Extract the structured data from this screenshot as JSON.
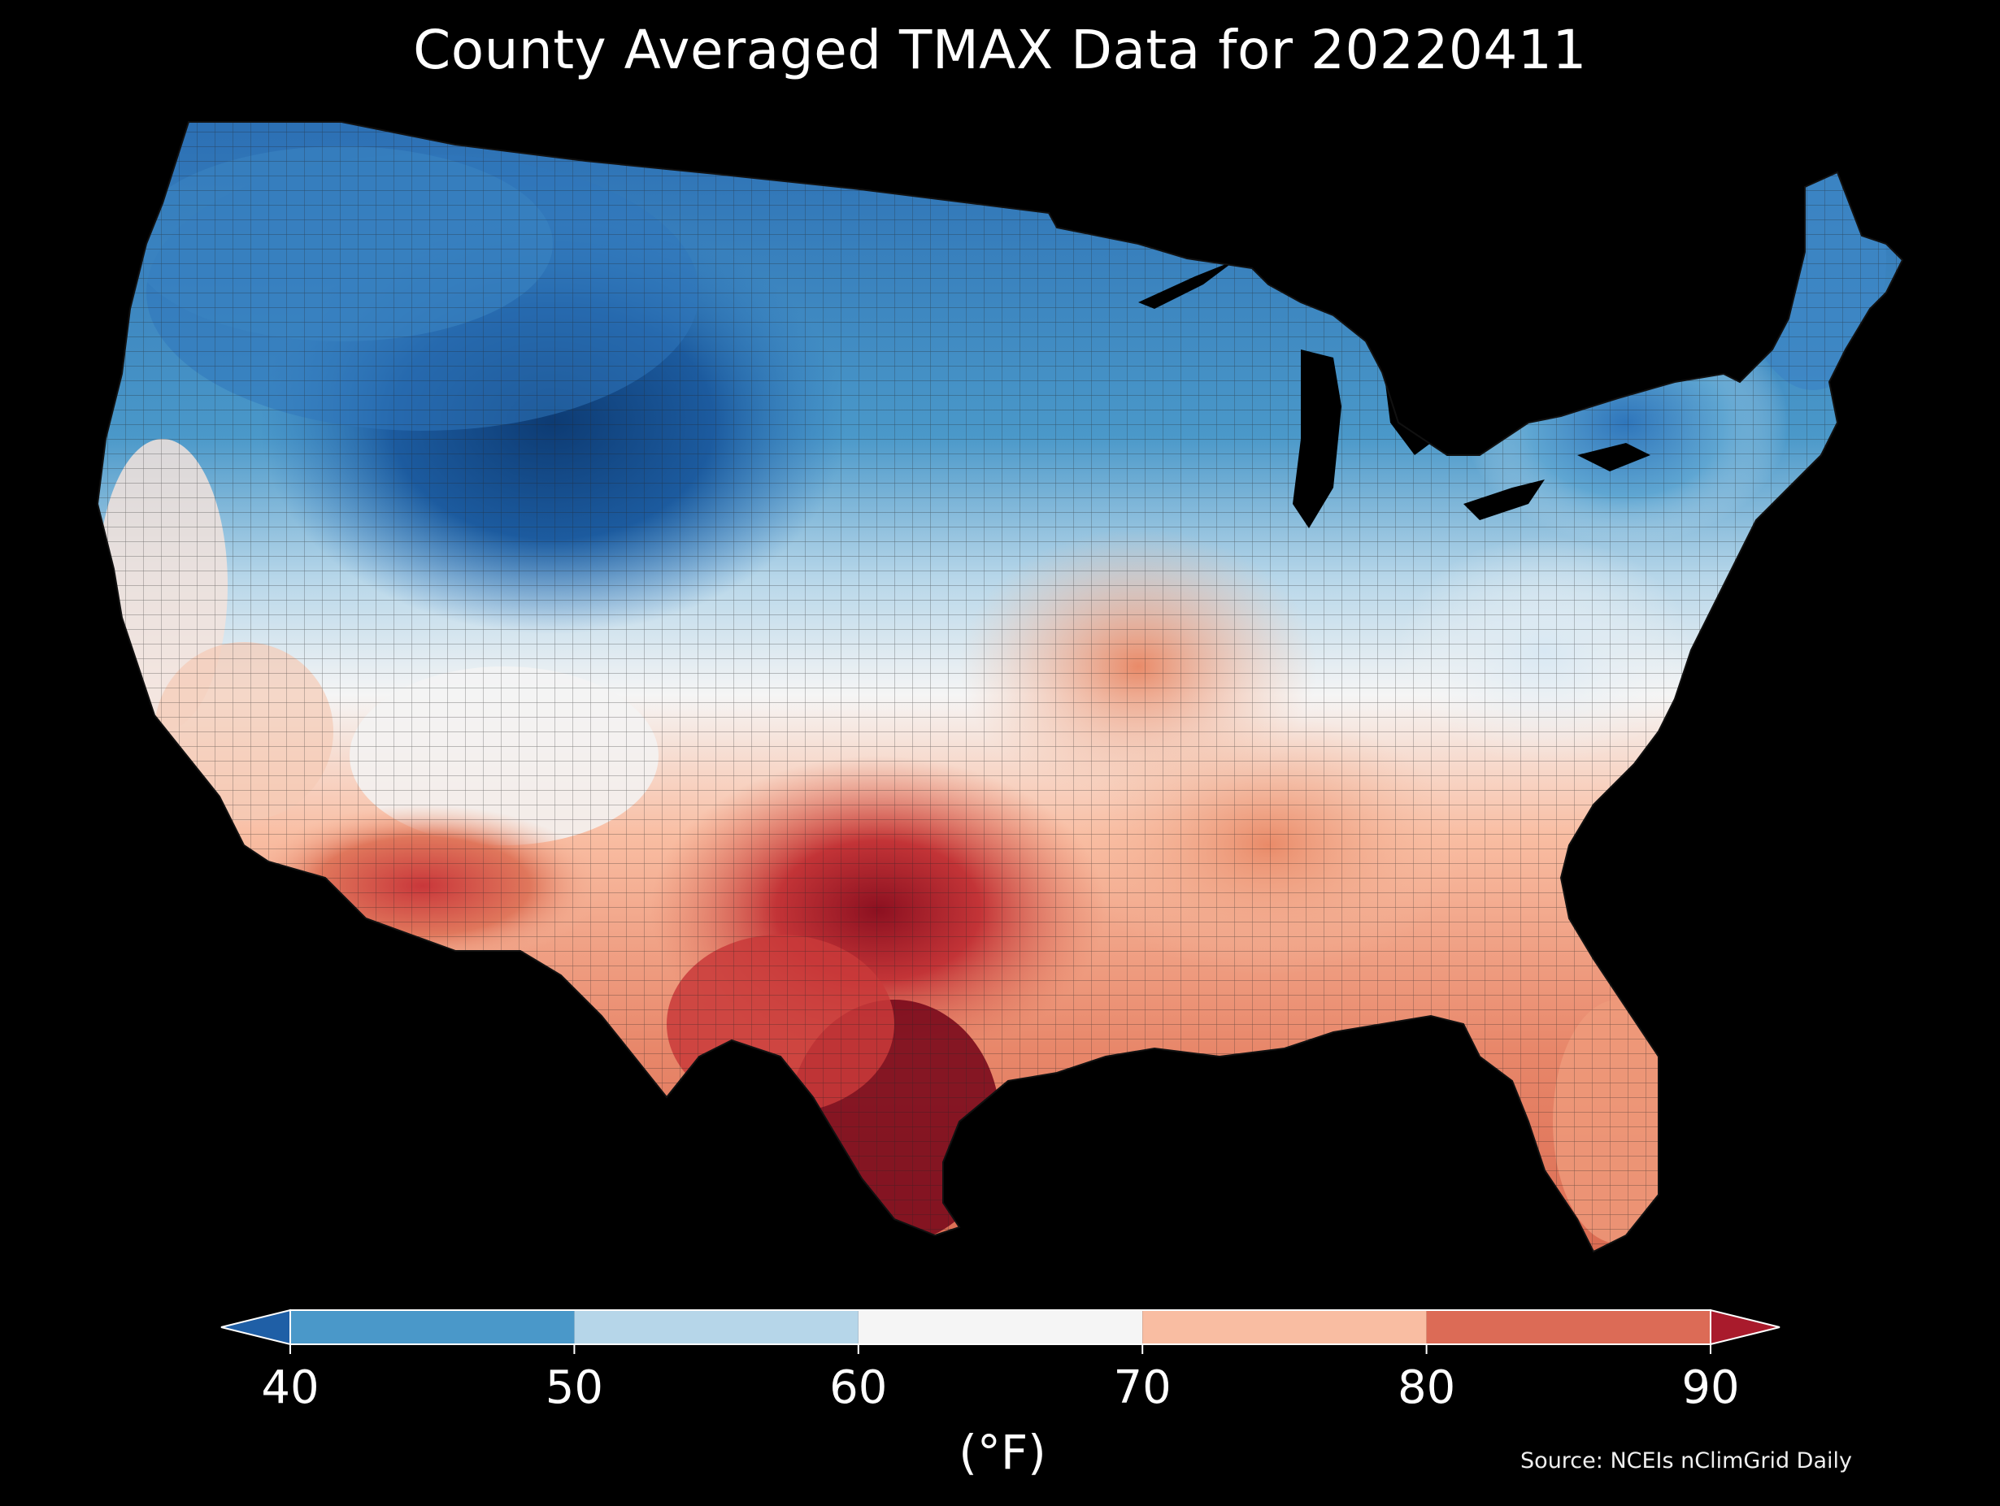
{
  "title": "County Averaged TMAX Data for 20220411",
  "colorbar": {
    "ticks": [
      "40",
      "50",
      "60",
      "70",
      "80",
      "90"
    ],
    "unit": "(°F)",
    "bins": [
      {
        "from": 40,
        "to": 50,
        "color": "#4a98c9"
      },
      {
        "from": 50,
        "to": 60,
        "color": "#b6d6e9"
      },
      {
        "from": 60,
        "to": 70,
        "color": "#f5f5f5"
      },
      {
        "from": 70,
        "to": 80,
        "color": "#f9bda2"
      },
      {
        "from": 80,
        "to": 90,
        "color": "#dc6b56"
      }
    ],
    "under_color": "#1f5fa6",
    "over_color": "#a91b2c",
    "extend": "both"
  },
  "source": "Source: NCEIs nClimGrid Daily",
  "map": {
    "region": "Contiguous United States",
    "palette": {
      "very_cold": "#0d3b73",
      "cold": "#2f76bb",
      "cool": "#6aaed6",
      "mild_cool": "#d3e6f2",
      "neutral": "#f5f5f5",
      "warm": "#f6c1a6",
      "hot": "#e88865",
      "very_hot": "#c93a3a",
      "extreme": "#7a0a1c",
      "water": "#000000",
      "border": "#1a1a1a"
    }
  }
}
